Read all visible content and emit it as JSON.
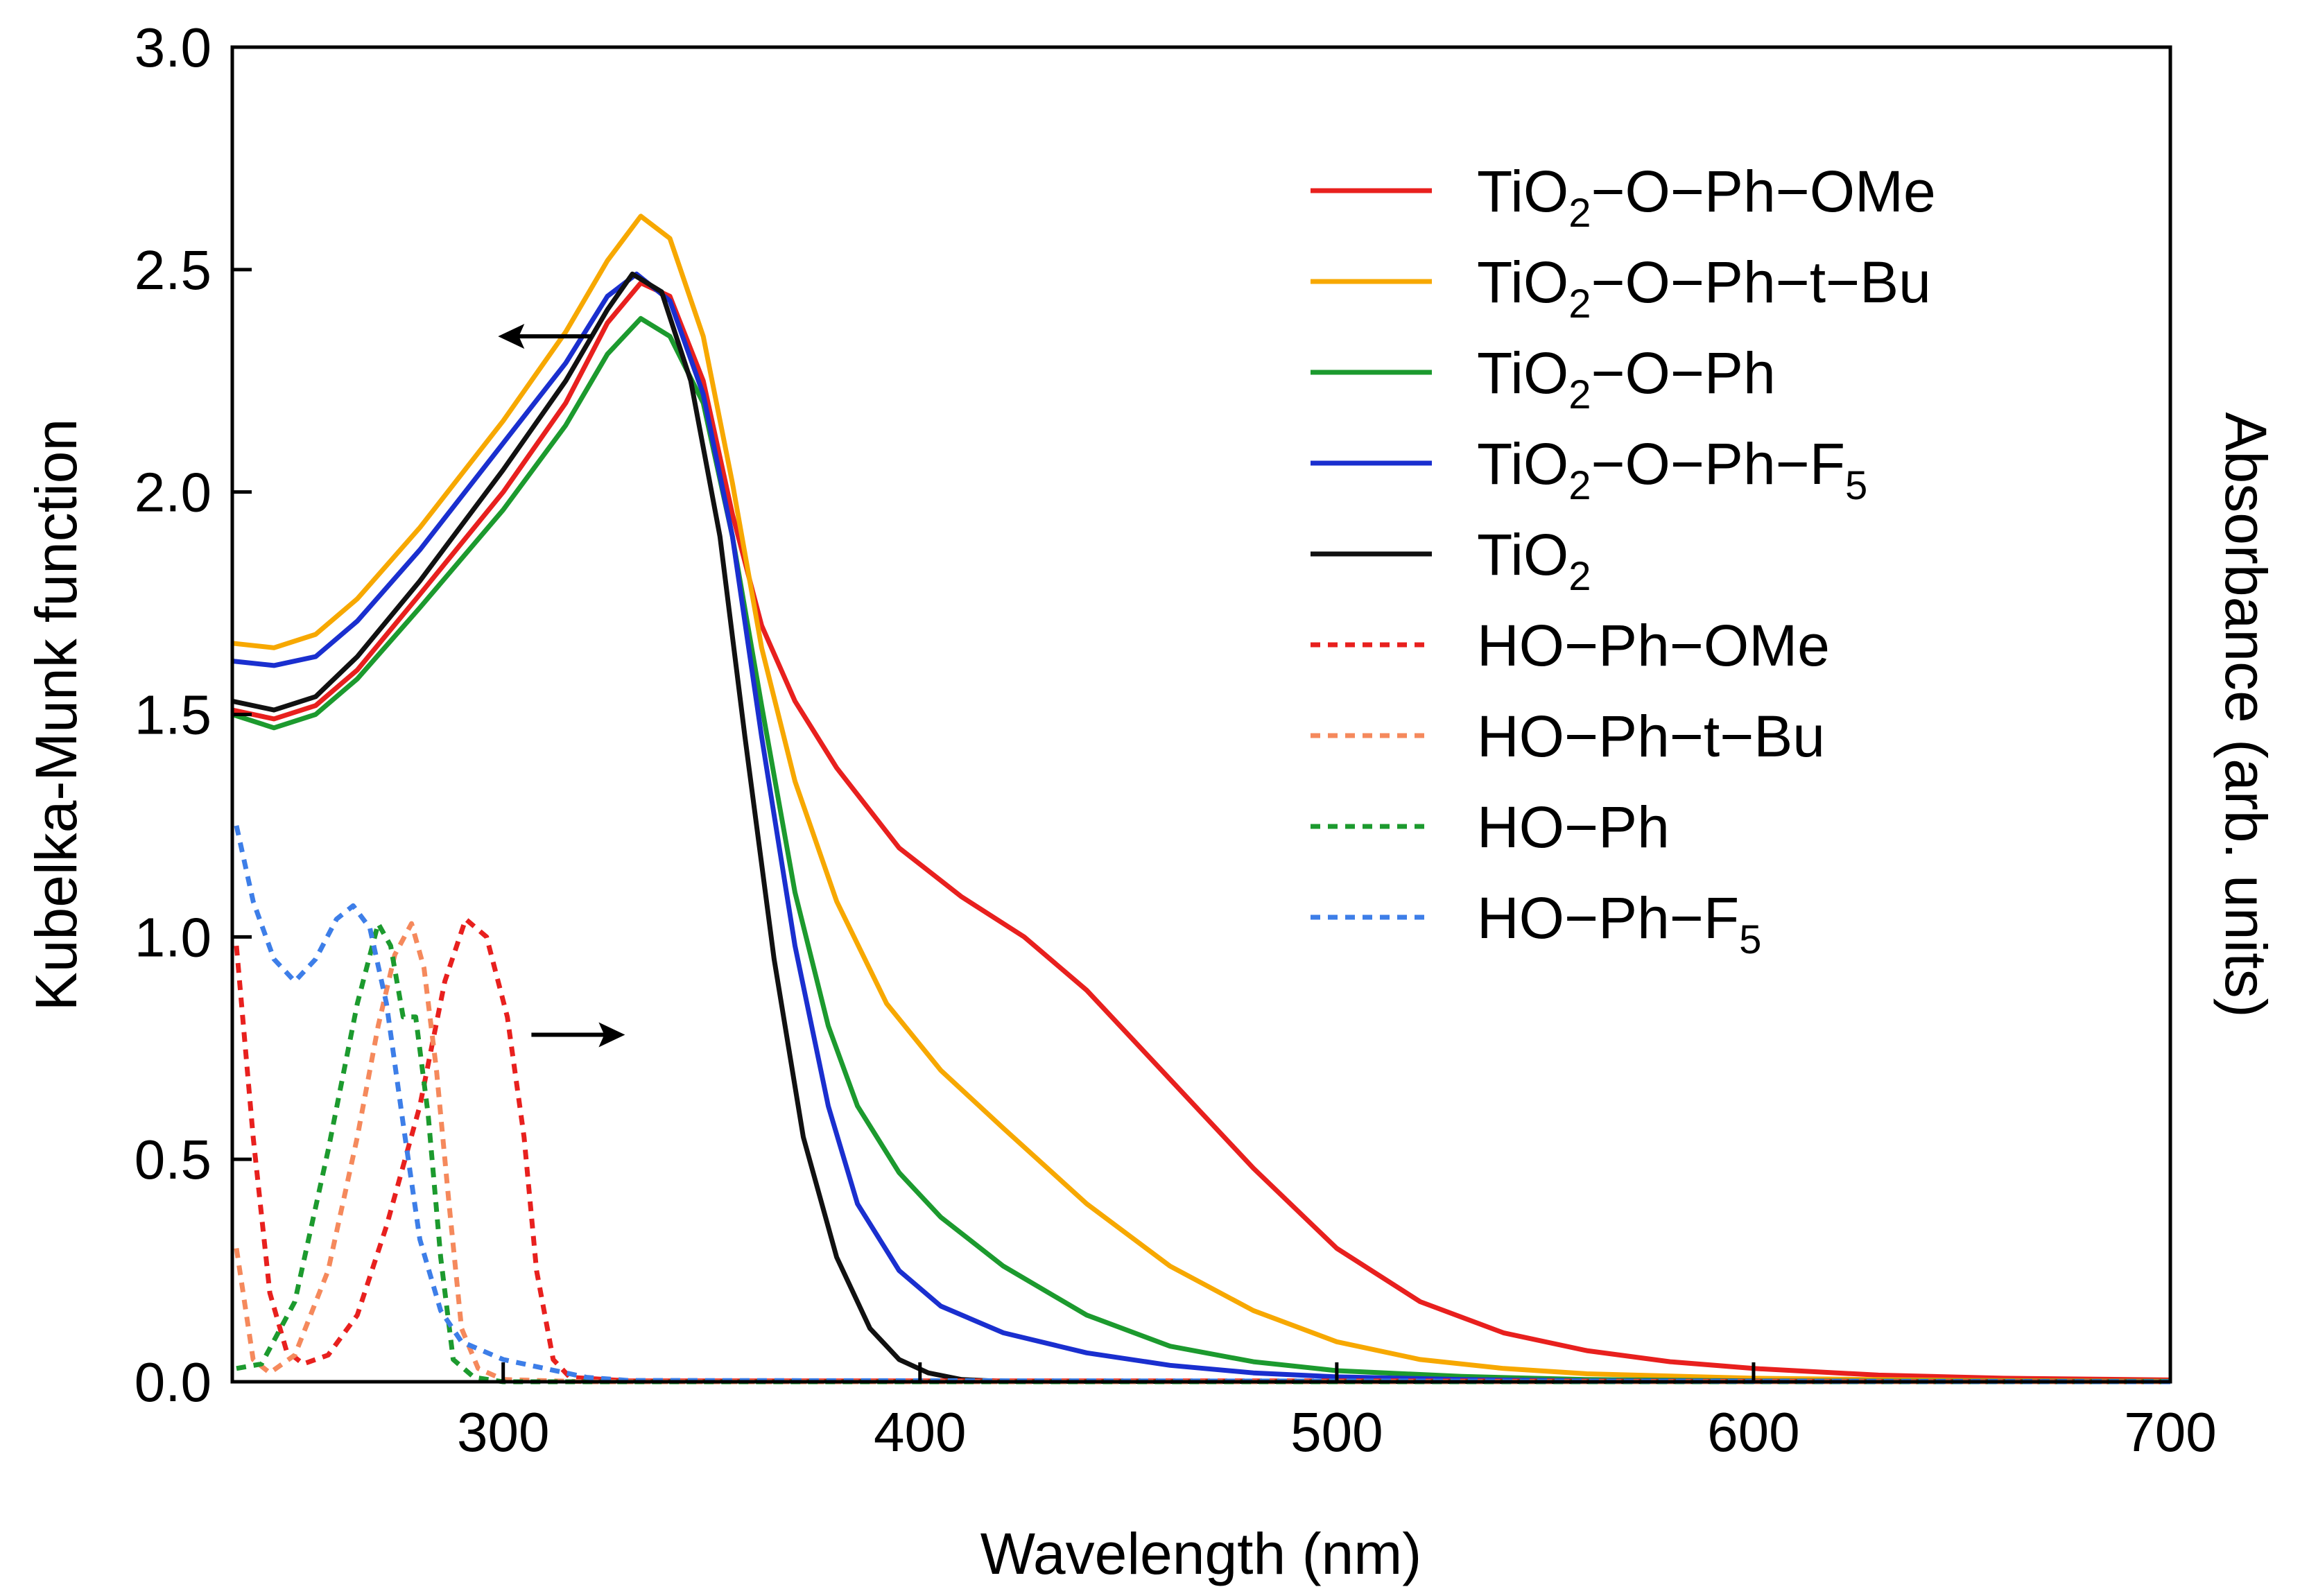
{
  "chart_data": {
    "type": "line",
    "title": "",
    "xlabel": "Wavelength (nm)",
    "ylabel": "Kubelka-Munk function",
    "y2label": "Absorbance (arb. units)",
    "xlim": [
      235,
      700
    ],
    "ylim": [
      0.0,
      3.0
    ],
    "x_ticks": [
      300,
      400,
      500,
      600,
      700
    ],
    "y_ticks": [
      0.0,
      0.5,
      1.0,
      1.5,
      2.0,
      2.5,
      3.0
    ],
    "x_tick_labels": [
      "300",
      "400",
      "500",
      "600",
      "700"
    ],
    "y_tick_labels": [
      "0.0",
      "0.5",
      "1.0",
      "1.5",
      "2.0",
      "2.5",
      "3.0"
    ],
    "grid": false,
    "legend_position": "top-right",
    "annotations": [
      {
        "type": "arrow",
        "direction": "left",
        "meaning": "left axis",
        "x": 310,
        "y": 2.35
      },
      {
        "type": "arrow",
        "direction": "right",
        "meaning": "right axis",
        "x": 318,
        "y": 0.78
      }
    ],
    "series": [
      {
        "name": "TiO2-O-Ph-OMe",
        "label_main": "TiO",
        "label_sub": "2",
        "label_rest": "−O−Ph−OMe",
        "axis": "left",
        "style": "solid",
        "color": "#e8201e",
        "points": [
          [
            235,
            1.51
          ],
          [
            245,
            1.49
          ],
          [
            255,
            1.52
          ],
          [
            265,
            1.6
          ],
          [
            280,
            1.77
          ],
          [
            300,
            2.0
          ],
          [
            315,
            2.2
          ],
          [
            325,
            2.38
          ],
          [
            333,
            2.47
          ],
          [
            340,
            2.44
          ],
          [
            348,
            2.25
          ],
          [
            355,
            1.95
          ],
          [
            362,
            1.7
          ],
          [
            370,
            1.53
          ],
          [
            380,
            1.38
          ],
          [
            395,
            1.2
          ],
          [
            410,
            1.09
          ],
          [
            425,
            1.0
          ],
          [
            440,
            0.88
          ],
          [
            460,
            0.68
          ],
          [
            480,
            0.48
          ],
          [
            500,
            0.3
          ],
          [
            520,
            0.18
          ],
          [
            540,
            0.11
          ],
          [
            560,
            0.07
          ],
          [
            580,
            0.045
          ],
          [
            600,
            0.03
          ],
          [
            630,
            0.015
          ],
          [
            660,
            0.008
          ],
          [
            700,
            0.004
          ]
        ]
      },
      {
        "name": "TiO2-O-Ph-t-Bu",
        "label_main": "TiO",
        "label_sub": "2",
        "label_rest": "−O−Ph−t−Bu",
        "axis": "left",
        "style": "solid",
        "color": "#f7a800",
        "points": [
          [
            235,
            1.66
          ],
          [
            245,
            1.65
          ],
          [
            255,
            1.68
          ],
          [
            265,
            1.76
          ],
          [
            280,
            1.92
          ],
          [
            300,
            2.16
          ],
          [
            315,
            2.36
          ],
          [
            325,
            2.52
          ],
          [
            333,
            2.62
          ],
          [
            340,
            2.57
          ],
          [
            348,
            2.35
          ],
          [
            355,
            2.02
          ],
          [
            362,
            1.65
          ],
          [
            370,
            1.35
          ],
          [
            380,
            1.08
          ],
          [
            392,
            0.85
          ],
          [
            405,
            0.7
          ],
          [
            420,
            0.57
          ],
          [
            440,
            0.4
          ],
          [
            460,
            0.26
          ],
          [
            480,
            0.16
          ],
          [
            500,
            0.09
          ],
          [
            520,
            0.05
          ],
          [
            540,
            0.03
          ],
          [
            560,
            0.018
          ],
          [
            600,
            0.008
          ],
          [
            650,
            0.003
          ],
          [
            700,
            0.001
          ]
        ]
      },
      {
        "name": "TiO2-O-Ph",
        "label_main": "TiO",
        "label_sub": "2",
        "label_rest": "−O−Ph",
        "axis": "left",
        "style": "solid",
        "color": "#1c9a2e",
        "points": [
          [
            235,
            1.5
          ],
          [
            245,
            1.47
          ],
          [
            255,
            1.5
          ],
          [
            265,
            1.58
          ],
          [
            280,
            1.74
          ],
          [
            300,
            1.96
          ],
          [
            315,
            2.15
          ],
          [
            325,
            2.31
          ],
          [
            333,
            2.39
          ],
          [
            340,
            2.35
          ],
          [
            348,
            2.2
          ],
          [
            355,
            1.9
          ],
          [
            362,
            1.52
          ],
          [
            370,
            1.1
          ],
          [
            378,
            0.8
          ],
          [
            385,
            0.62
          ],
          [
            395,
            0.47
          ],
          [
            405,
            0.37
          ],
          [
            420,
            0.26
          ],
          [
            440,
            0.15
          ],
          [
            460,
            0.08
          ],
          [
            480,
            0.045
          ],
          [
            500,
            0.025
          ],
          [
            530,
            0.012
          ],
          [
            560,
            0.005
          ],
          [
            600,
            0.002
          ],
          [
            700,
            0.001
          ]
        ]
      },
      {
        "name": "TiO2-O-Ph-F5",
        "label_main": "TiO",
        "label_sub": "2",
        "label_rest": "−O−Ph−F",
        "label_rest_sub": "5",
        "axis": "left",
        "style": "solid",
        "color": "#1a2fcf",
        "points": [
          [
            235,
            1.62
          ],
          [
            245,
            1.61
          ],
          [
            255,
            1.63
          ],
          [
            265,
            1.71
          ],
          [
            280,
            1.87
          ],
          [
            300,
            2.11
          ],
          [
            315,
            2.29
          ],
          [
            325,
            2.44
          ],
          [
            332,
            2.49
          ],
          [
            340,
            2.43
          ],
          [
            348,
            2.22
          ],
          [
            355,
            1.9
          ],
          [
            362,
            1.45
          ],
          [
            370,
            0.98
          ],
          [
            378,
            0.62
          ],
          [
            385,
            0.4
          ],
          [
            395,
            0.25
          ],
          [
            405,
            0.17
          ],
          [
            420,
            0.11
          ],
          [
            440,
            0.065
          ],
          [
            460,
            0.037
          ],
          [
            480,
            0.02
          ],
          [
            500,
            0.011
          ],
          [
            530,
            0.005
          ],
          [
            560,
            0.002
          ],
          [
            700,
            0.0
          ]
        ]
      },
      {
        "name": "TiO2",
        "label_main": "TiO",
        "label_sub": "2",
        "label_rest": "",
        "axis": "left",
        "style": "solid",
        "color": "#111111",
        "points": [
          [
            235,
            1.53
          ],
          [
            245,
            1.51
          ],
          [
            255,
            1.54
          ],
          [
            265,
            1.63
          ],
          [
            280,
            1.8
          ],
          [
            300,
            2.05
          ],
          [
            315,
            2.25
          ],
          [
            325,
            2.41
          ],
          [
            331,
            2.49
          ],
          [
            338,
            2.45
          ],
          [
            345,
            2.25
          ],
          [
            352,
            1.9
          ],
          [
            358,
            1.45
          ],
          [
            365,
            0.95
          ],
          [
            372,
            0.55
          ],
          [
            380,
            0.28
          ],
          [
            388,
            0.12
          ],
          [
            395,
            0.05
          ],
          [
            402,
            0.02
          ],
          [
            410,
            0.005
          ],
          [
            420,
            0.001
          ],
          [
            700,
            0.0
          ]
        ]
      },
      {
        "name": "HO-Ph-OMe",
        "label_main": "HO−Ph−OMe",
        "label_sub": "",
        "label_rest": "",
        "axis": "right",
        "style": "dashed",
        "color": "#e8201e",
        "points": [
          [
            236,
            0.98
          ],
          [
            240,
            0.55
          ],
          [
            244,
            0.2
          ],
          [
            248,
            0.07
          ],
          [
            252,
            0.04
          ],
          [
            258,
            0.06
          ],
          [
            265,
            0.15
          ],
          [
            272,
            0.35
          ],
          [
            280,
            0.62
          ],
          [
            286,
            0.9
          ],
          [
            291,
            1.04
          ],
          [
            296,
            1.0
          ],
          [
            301,
            0.82
          ],
          [
            305,
            0.55
          ],
          [
            308,
            0.25
          ],
          [
            312,
            0.05
          ],
          [
            316,
            0.01
          ],
          [
            330,
            0.002
          ],
          [
            500,
            0.002
          ],
          [
            700,
            0.0
          ]
        ]
      },
      {
        "name": "HO-Ph-t-Bu",
        "label_main": "HO−Ph−t−Bu",
        "label_sub": "",
        "label_rest": "",
        "axis": "right",
        "style": "dashed",
        "color": "#f5895c",
        "points": [
          [
            236,
            0.3
          ],
          [
            240,
            0.05
          ],
          [
            244,
            0.02
          ],
          [
            250,
            0.06
          ],
          [
            258,
            0.25
          ],
          [
            265,
            0.55
          ],
          [
            270,
            0.8
          ],
          [
            274,
            0.96
          ],
          [
            278,
            1.03
          ],
          [
            281,
            0.93
          ],
          [
            284,
            0.7
          ],
          [
            287,
            0.4
          ],
          [
            290,
            0.12
          ],
          [
            294,
            0.03
          ],
          [
            300,
            0.005
          ],
          [
            320,
            0.0
          ],
          [
            700,
            0.0
          ]
        ]
      },
      {
        "name": "HO-Ph",
        "label_main": "HO−Ph",
        "label_sub": "",
        "label_rest": "",
        "axis": "right",
        "style": "dashed",
        "color": "#1c9a2e",
        "points": [
          [
            236,
            0.03
          ],
          [
            242,
            0.04
          ],
          [
            250,
            0.18
          ],
          [
            258,
            0.52
          ],
          [
            265,
            0.85
          ],
          [
            270,
            1.03
          ],
          [
            273,
            0.98
          ],
          [
            276,
            0.82
          ],
          [
            279,
            0.82
          ],
          [
            282,
            0.6
          ],
          [
            285,
            0.28
          ],
          [
            288,
            0.05
          ],
          [
            293,
            0.01
          ],
          [
            300,
            0.0
          ],
          [
            700,
            0.0
          ]
        ]
      },
      {
        "name": "HO-Ph-F5",
        "label_main": "HO−Ph−F",
        "label_sub": "5",
        "label_rest": "",
        "axis": "right",
        "style": "dashed",
        "color": "#3d7ee8",
        "points": [
          [
            236,
            1.25
          ],
          [
            240,
            1.08
          ],
          [
            245,
            0.95
          ],
          [
            250,
            0.9
          ],
          [
            255,
            0.95
          ],
          [
            260,
            1.04
          ],
          [
            264,
            1.07
          ],
          [
            268,
            1.02
          ],
          [
            272,
            0.85
          ],
          [
            276,
            0.58
          ],
          [
            280,
            0.32
          ],
          [
            285,
            0.16
          ],
          [
            290,
            0.09
          ],
          [
            295,
            0.07
          ],
          [
            300,
            0.05
          ],
          [
            310,
            0.03
          ],
          [
            320,
            0.01
          ],
          [
            330,
            0.003
          ],
          [
            700,
            0.0
          ]
        ]
      }
    ]
  }
}
